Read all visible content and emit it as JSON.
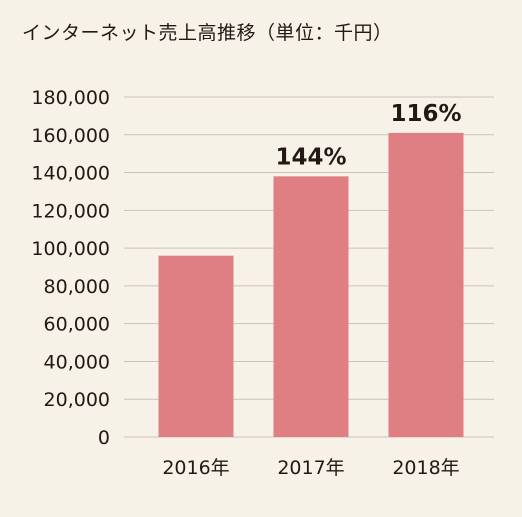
{
  "chart_data": {
    "type": "bar",
    "title": "インターネット売上高推移（単位：千円）",
    "categories": [
      "2016年",
      "2017年",
      "2018年"
    ],
    "values": [
      96000,
      138000,
      161000
    ],
    "data_labels": [
      "",
      "144%",
      "116%"
    ],
    "ylim": [
      0,
      180000
    ],
    "yticks": [
      0,
      20000,
      40000,
      60000,
      80000,
      100000,
      120000,
      140000,
      160000,
      180000
    ],
    "ytick_labels": [
      "0",
      "20,000",
      "40,000",
      "60,000",
      "80,000",
      "100,000",
      "120,000",
      "140,000",
      "160,000",
      "180,000"
    ],
    "grid": true,
    "legend": "none",
    "colors": {
      "bar": "#e07f83",
      "grid": "#c9c3b8",
      "background": "#f7f2e8"
    }
  }
}
